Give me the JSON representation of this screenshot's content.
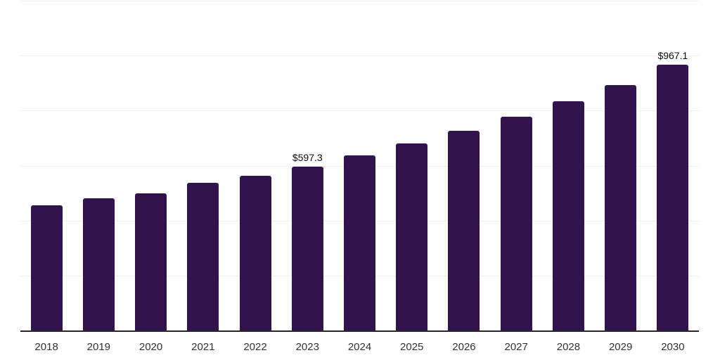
{
  "chart_data": {
    "type": "bar",
    "title": "",
    "xlabel": "",
    "ylabel": "",
    "categories": [
      "2018",
      "2019",
      "2020",
      "2021",
      "2022",
      "2023",
      "2024",
      "2025",
      "2026",
      "2027",
      "2028",
      "2029",
      "2030"
    ],
    "values": [
      454.4,
      481.8,
      499.7,
      537.3,
      561.8,
      597.3,
      637.7,
      681.2,
      727.2,
      779.1,
      834.5,
      894.1,
      967.1
    ],
    "value_labels": [
      null,
      null,
      null,
      null,
      null,
      "$597.3",
      null,
      null,
      null,
      null,
      null,
      null,
      "$967.1"
    ],
    "ylim": [
      0,
      1200
    ],
    "y_gridline_step": 200,
    "y_tick_labels_visible": false,
    "grid": "horizontal",
    "legend": "none",
    "colors": {
      "bar": "#33134D",
      "gridline": "#F2F2F2",
      "axis_line": "#262626",
      "x_tick_label": "#333333",
      "value_label": "#0D0D0D",
      "background": "#FFFFFF"
    }
  }
}
